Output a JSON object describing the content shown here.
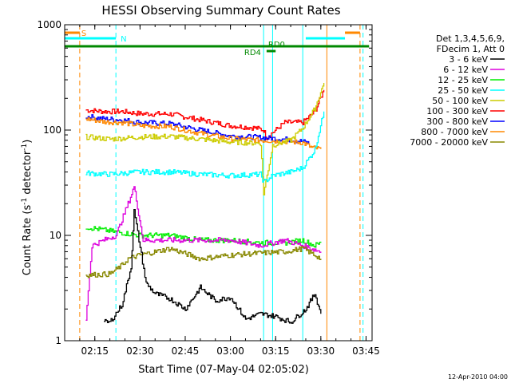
{
  "chart_data": {
    "type": "line",
    "title": "HESSI Observing Summary Count Rates",
    "xlabel": "Start Time (07-May-04 02:05:02)",
    "ylabel_main": "Count Rate (s",
    "ylabel_sup": "-1",
    "ylabel_mid": " detector",
    "ylabel_sup2": "-1",
    "ylabel_end": ")",
    "footer": "12-Apr-2010 04:00",
    "y_scale": "log",
    "ylim": [
      1,
      1000
    ],
    "xlim": [
      "02:05",
      "03:47"
    ],
    "x_ticks": [
      "02:15",
      "02:30",
      "02:45",
      "03:00",
      "03:15",
      "03:30",
      "03:45"
    ],
    "y_ticks": [
      "1",
      "10",
      "100",
      "1000"
    ],
    "legend": {
      "header": [
        "Det 1,3,4,5,6,9,",
        "FDecim 1, Att 0"
      ],
      "placement": "right",
      "entries": [
        {
          "label": "3 - 6 keV",
          "color": "#000000"
        },
        {
          "label": "6 - 12 keV",
          "color": "#dd00dd"
        },
        {
          "label": "12 - 25 keV",
          "color": "#00ee00"
        },
        {
          "label": "25 - 50 keV",
          "color": "#00ffff"
        },
        {
          "label": "50 - 100 keV",
          "color": "#cccc00"
        },
        {
          "label": "100 - 300 keV",
          "color": "#ff0000"
        },
        {
          "label": "300 - 800 keV",
          "color": "#0000ff"
        },
        {
          "label": "800 - 7000 keV",
          "color": "#ff8800"
        },
        {
          "label": "7000 - 20000 keV",
          "color": "#888800"
        }
      ]
    },
    "flags": [
      {
        "label": "S",
        "color": "#ff8800",
        "segments": [
          [
            "02:05",
            "02:10"
          ],
          [
            "03:38",
            "03:43"
          ]
        ]
      },
      {
        "label": "N",
        "color": "#00ffff",
        "segments": [
          [
            "02:05",
            "02:22"
          ],
          [
            "03:25",
            "03:38"
          ]
        ]
      },
      {
        "label": "RD0",
        "color": "#008800",
        "segments": [
          [
            "02:05",
            "03:46"
          ]
        ]
      },
      {
        "label": "RD4",
        "color": "#008800",
        "segments": [
          [
            "03:12",
            "03:15"
          ]
        ]
      }
    ],
    "vlines": [
      {
        "time": "02:10",
        "color": "#ff8800",
        "style": "dashed"
      },
      {
        "time": "02:22",
        "color": "#00ffff",
        "style": "dashed"
      },
      {
        "time": "03:11",
        "color": "#00ffff",
        "style": "solid"
      },
      {
        "time": "03:14",
        "color": "#00ffff",
        "style": "solid"
      },
      {
        "time": "03:24",
        "color": "#00ffff",
        "style": "solid"
      },
      {
        "time": "03:32",
        "color": "#ff8800",
        "style": "solid"
      },
      {
        "time": "03:43",
        "color": "#ff8800",
        "style": "dashed"
      },
      {
        "time": "03:44",
        "color": "#00ffff",
        "style": "dashed"
      }
    ],
    "series": [
      {
        "name": "100 - 300 keV",
        "color": "#ff0000",
        "x": [
          "02:12",
          "02:18",
          "02:24",
          "02:30",
          "02:40",
          "02:50",
          "03:00",
          "03:08",
          "03:11",
          "03:12",
          "03:18",
          "03:24",
          "03:28",
          "03:31"
        ],
        "y": [
          155,
          150,
          150,
          143,
          142,
          125,
          110,
          105,
          100,
          85,
          118,
          118,
          150,
          240
        ]
      },
      {
        "name": "300 - 800 keV",
        "color": "#0000ff",
        "x": [
          "02:12",
          "02:18",
          "02:24",
          "02:30",
          "02:40",
          "02:50",
          "03:00",
          "03:10",
          "03:18",
          "03:24",
          "03:26"
        ],
        "y": [
          135,
          128,
          125,
          118,
          115,
          100,
          88,
          85,
          82,
          78,
          75
        ]
      },
      {
        "name": "800 - 7000 keV",
        "color": "#ff8800",
        "x": [
          "02:12",
          "02:18",
          "02:24",
          "02:30",
          "02:40",
          "02:50",
          "03:00",
          "03:10",
          "03:18",
          "03:24",
          "03:27",
          "03:30"
        ],
        "y": [
          128,
          120,
          118,
          110,
          108,
          93,
          83,
          80,
          78,
          76,
          68,
          66
        ]
      },
      {
        "name": "50 - 100 keV",
        "color": "#cccc00",
        "x": [
          "02:12",
          "02:20",
          "02:30",
          "02:40",
          "02:50",
          "03:00",
          "03:10",
          "03:11",
          "03:14",
          "03:20",
          "03:24",
          "03:28",
          "03:31"
        ],
        "y": [
          86,
          82,
          86,
          87,
          82,
          77,
          75,
          25,
          72,
          80,
          105,
          160,
          280
        ]
      },
      {
        "name": "25 - 50 keV",
        "color": "#00ffff",
        "x": [
          "02:12",
          "02:20",
          "02:30",
          "02:40",
          "02:50",
          "03:00",
          "03:10",
          "03:11",
          "03:14",
          "03:20",
          "03:24",
          "03:28",
          "03:31"
        ],
        "y": [
          39,
          38,
          40,
          40,
          38,
          37,
          38,
          32,
          37,
          40,
          44,
          65,
          150
        ]
      },
      {
        "name": "12 - 25 keV",
        "color": "#00ee00",
        "x": [
          "02:12",
          "02:20",
          "02:30",
          "02:40",
          "02:50",
          "03:00",
          "03:10",
          "03:18",
          "03:24",
          "03:28",
          "03:30"
        ],
        "y": [
          12,
          11,
          10,
          10,
          9,
          9,
          8.5,
          8.5,
          9,
          8,
          8.5
        ]
      },
      {
        "name": "6 - 12 keV",
        "color": "#dd00dd",
        "x": [
          "02:12",
          "02:14",
          "02:18",
          "02:22",
          "02:26",
          "02:28",
          "02:31",
          "02:40",
          "02:50",
          "03:00",
          "03:10",
          "03:18",
          "03:24",
          "03:30"
        ],
        "y": [
          1.6,
          8,
          9,
          10,
          20,
          29,
          9,
          9,
          9,
          9,
          8,
          9,
          8,
          7
        ]
      },
      {
        "name": "7000 - 20000 keV",
        "color": "#888800",
        "x": [
          "02:12",
          "02:20",
          "02:24",
          "02:26",
          "02:30",
          "02:40",
          "02:50",
          "03:00",
          "03:10",
          "03:18",
          "03:24",
          "03:28",
          "03:30"
        ],
        "y": [
          4.2,
          4.3,
          5.2,
          6,
          6.5,
          7.5,
          6,
          6.5,
          6.8,
          7,
          7.5,
          6.5,
          6
        ]
      },
      {
        "name": "3 - 6 keV",
        "color": "#000000",
        "x": [
          "02:18",
          "02:20",
          "02:24",
          "02:27",
          "02:28",
          "02:32",
          "02:35",
          "02:40",
          "02:45",
          "02:50",
          "02:55",
          "03:00",
          "03:05",
          "03:10",
          "03:15",
          "03:20",
          "03:25",
          "03:28",
          "03:30"
        ],
        "y": [
          1.5,
          1.5,
          2.2,
          5,
          17,
          3.5,
          2.8,
          2.5,
          2,
          3.2,
          2.4,
          2.6,
          1.6,
          1.8,
          1.7,
          1.5,
          2,
          2.8,
          1.8
        ]
      }
    ]
  }
}
